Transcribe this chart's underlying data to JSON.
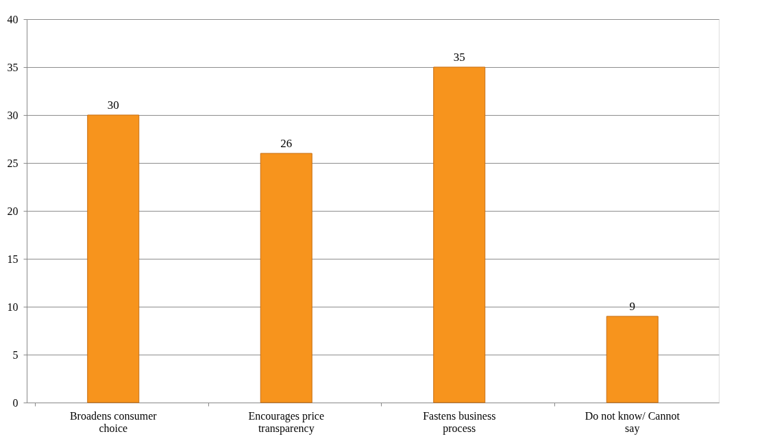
{
  "chart_data": {
    "type": "bar",
    "categories": [
      "Broadens consumer choice",
      "Encourages price transparency",
      "Fastens business process",
      "Do not know/ Cannot say"
    ],
    "values": [
      30,
      26,
      35,
      9
    ],
    "color": "#f7941d",
    "ylim": [
      0,
      40
    ],
    "yticks": [
      0,
      5,
      10,
      15,
      20,
      25,
      30,
      35,
      40
    ],
    "grid": "y",
    "data_labels": true
  }
}
